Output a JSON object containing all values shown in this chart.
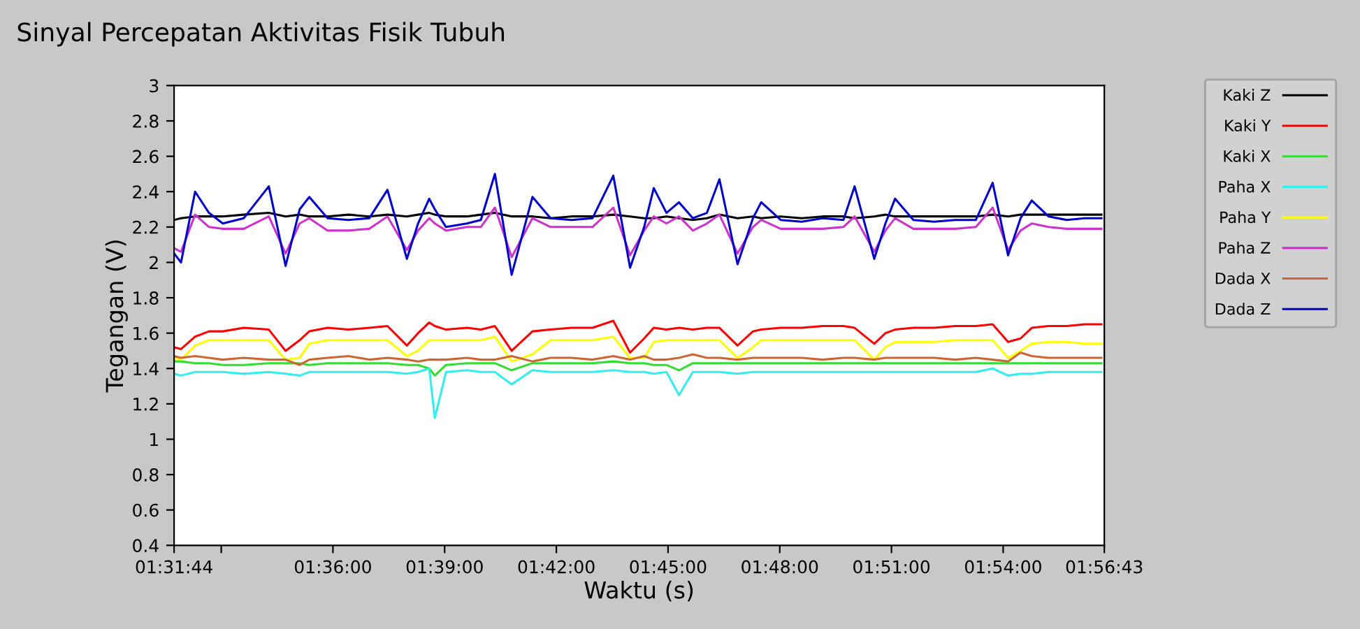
{
  "chart_data": {
    "type": "line",
    "title": "Sinyal Percepatan Aktivitas Fisik Tubuh",
    "xlabel": "Waktu (s)",
    "ylabel": "Tegangan (V)",
    "x": [
      1.5289,
      1.532,
      1.5383,
      1.5445,
      1.5507,
      1.5601,
      1.5713,
      1.5788,
      1.5851,
      1.5894,
      1.5976,
      1.6069,
      1.6163,
      1.6244,
      1.6331,
      1.6381,
      1.6431,
      1.6456,
      1.6506,
      1.66,
      1.6662,
      1.6725,
      1.68,
      1.6893,
      1.6974,
      1.7068,
      1.7162,
      1.7255,
      1.733,
      1.7393,
      1.7436,
      1.7493,
      1.7549,
      1.7611,
      1.7674,
      1.773,
      1.7811,
      1.788,
      1.7917,
      1.8004,
      1.8098,
      1.8192,
      1.8285,
      1.8335,
      1.8423,
      1.8473,
      1.8516,
      1.8598,
      1.8691,
      1.8785,
      1.8878,
      1.8953,
      1.9022,
      1.9078,
      1.9128,
      1.9203,
      1.9284,
      1.9365,
      1.944
    ],
    "series": [
      {
        "name": "Kaki Z",
        "color": "#000000",
        "values": [
          2.24,
          2.25,
          2.26,
          2.26,
          2.26,
          2.27,
          2.28,
          2.26,
          2.27,
          2.26,
          2.26,
          2.27,
          2.26,
          2.27,
          2.26,
          2.27,
          2.28,
          2.27,
          2.26,
          2.26,
          2.27,
          2.28,
          2.26,
          2.26,
          2.25,
          2.26,
          2.26,
          2.27,
          2.26,
          2.25,
          2.25,
          2.26,
          2.25,
          2.24,
          2.25,
          2.27,
          2.25,
          2.26,
          2.25,
          2.26,
          2.25,
          2.26,
          2.26,
          2.25,
          2.26,
          2.27,
          2.26,
          2.26,
          2.26,
          2.26,
          2.26,
          2.27,
          2.26,
          2.27,
          2.27,
          2.27,
          2.27,
          2.27,
          2.27
        ]
      },
      {
        "name": "Kaki Y",
        "color": "#ff0000",
        "values": [
          1.52,
          1.51,
          1.58,
          1.61,
          1.61,
          1.63,
          1.62,
          1.5,
          1.56,
          1.61,
          1.63,
          1.62,
          1.63,
          1.64,
          1.53,
          1.6,
          1.66,
          1.64,
          1.62,
          1.63,
          1.62,
          1.64,
          1.5,
          1.61,
          1.62,
          1.63,
          1.63,
          1.67,
          1.49,
          1.57,
          1.63,
          1.62,
          1.63,
          1.62,
          1.63,
          1.63,
          1.53,
          1.61,
          1.62,
          1.63,
          1.63,
          1.64,
          1.64,
          1.63,
          1.54,
          1.6,
          1.62,
          1.63,
          1.63,
          1.64,
          1.64,
          1.65,
          1.55,
          1.57,
          1.63,
          1.64,
          1.64,
          1.65,
          1.65
        ]
      },
      {
        "name": "Kaki X",
        "color": "#33dd33",
        "values": [
          1.44,
          1.44,
          1.43,
          1.43,
          1.42,
          1.42,
          1.43,
          1.43,
          1.43,
          1.42,
          1.43,
          1.43,
          1.43,
          1.43,
          1.42,
          1.42,
          1.4,
          1.36,
          1.42,
          1.43,
          1.43,
          1.43,
          1.39,
          1.43,
          1.43,
          1.43,
          1.43,
          1.44,
          1.43,
          1.43,
          1.42,
          1.42,
          1.39,
          1.43,
          1.43,
          1.43,
          1.43,
          1.43,
          1.43,
          1.43,
          1.43,
          1.43,
          1.43,
          1.43,
          1.43,
          1.43,
          1.43,
          1.43,
          1.43,
          1.43,
          1.43,
          1.43,
          1.43,
          1.43,
          1.43,
          1.43,
          1.43,
          1.43,
          1.43
        ]
      },
      {
        "name": "Paha X",
        "color": "#33eeee",
        "values": [
          1.37,
          1.36,
          1.38,
          1.38,
          1.38,
          1.37,
          1.38,
          1.37,
          1.36,
          1.38,
          1.38,
          1.38,
          1.38,
          1.38,
          1.37,
          1.38,
          1.4,
          1.12,
          1.38,
          1.39,
          1.38,
          1.38,
          1.31,
          1.39,
          1.38,
          1.38,
          1.38,
          1.39,
          1.38,
          1.38,
          1.37,
          1.38,
          1.25,
          1.38,
          1.38,
          1.38,
          1.37,
          1.38,
          1.38,
          1.38,
          1.38,
          1.38,
          1.38,
          1.38,
          1.38,
          1.38,
          1.38,
          1.38,
          1.38,
          1.38,
          1.38,
          1.4,
          1.36,
          1.37,
          1.37,
          1.38,
          1.38,
          1.38,
          1.38
        ]
      },
      {
        "name": "Paha Y",
        "color": "#ffff00",
        "values": [
          1.46,
          1.45,
          1.53,
          1.56,
          1.56,
          1.56,
          1.56,
          1.45,
          1.46,
          1.54,
          1.56,
          1.56,
          1.56,
          1.56,
          1.47,
          1.5,
          1.56,
          1.56,
          1.56,
          1.56,
          1.56,
          1.58,
          1.44,
          1.48,
          1.56,
          1.56,
          1.56,
          1.58,
          1.46,
          1.46,
          1.55,
          1.56,
          1.56,
          1.56,
          1.56,
          1.56,
          1.46,
          1.52,
          1.56,
          1.56,
          1.56,
          1.56,
          1.56,
          1.56,
          1.45,
          1.52,
          1.55,
          1.55,
          1.55,
          1.56,
          1.56,
          1.56,
          1.46,
          1.5,
          1.54,
          1.55,
          1.55,
          1.54,
          1.54
        ]
      },
      {
        "name": "Paha Z",
        "color": "#cc33cc",
        "values": [
          2.08,
          2.06,
          2.27,
          2.2,
          2.19,
          2.19,
          2.26,
          2.05,
          2.22,
          2.25,
          2.18,
          2.18,
          2.19,
          2.26,
          2.07,
          2.18,
          2.25,
          2.22,
          2.18,
          2.2,
          2.2,
          2.31,
          2.03,
          2.25,
          2.2,
          2.2,
          2.2,
          2.31,
          2.04,
          2.18,
          2.26,
          2.22,
          2.26,
          2.18,
          2.22,
          2.27,
          2.05,
          2.2,
          2.24,
          2.19,
          2.19,
          2.19,
          2.2,
          2.26,
          2.06,
          2.18,
          2.25,
          2.19,
          2.19,
          2.19,
          2.2,
          2.31,
          2.07,
          2.18,
          2.22,
          2.2,
          2.19,
          2.19,
          2.19
        ]
      },
      {
        "name": "Dada X",
        "color": "#cc6633",
        "values": [
          1.47,
          1.46,
          1.47,
          1.46,
          1.45,
          1.46,
          1.45,
          1.45,
          1.42,
          1.45,
          1.46,
          1.47,
          1.45,
          1.46,
          1.45,
          1.44,
          1.45,
          1.45,
          1.45,
          1.46,
          1.45,
          1.45,
          1.47,
          1.44,
          1.46,
          1.46,
          1.45,
          1.47,
          1.45,
          1.47,
          1.45,
          1.45,
          1.46,
          1.48,
          1.46,
          1.46,
          1.45,
          1.46,
          1.46,
          1.46,
          1.46,
          1.45,
          1.46,
          1.46,
          1.45,
          1.46,
          1.46,
          1.46,
          1.46,
          1.45,
          1.46,
          1.45,
          1.44,
          1.49,
          1.47,
          1.46,
          1.46,
          1.46,
          1.46
        ]
      },
      {
        "name": "Dada Z",
        "color": "#0000cc",
        "values": [
          2.05,
          2.0,
          2.4,
          2.28,
          2.22,
          2.25,
          2.43,
          1.98,
          2.3,
          2.37,
          2.25,
          2.24,
          2.25,
          2.41,
          2.02,
          2.22,
          2.36,
          2.3,
          2.2,
          2.22,
          2.24,
          2.5,
          1.93,
          2.37,
          2.25,
          2.24,
          2.25,
          2.49,
          1.97,
          2.2,
          2.42,
          2.28,
          2.34,
          2.25,
          2.28,
          2.47,
          1.99,
          2.25,
          2.34,
          2.24,
          2.23,
          2.25,
          2.24,
          2.43,
          2.02,
          2.22,
          2.36,
          2.24,
          2.23,
          2.24,
          2.24,
          2.45,
          2.04,
          2.25,
          2.35,
          2.26,
          2.24,
          2.25,
          2.25
        ]
      }
    ],
    "xlim": [
      1.528889,
      1.945278
    ],
    "xticks": [
      {
        "value": 1.528889,
        "label": "01:31:44"
      },
      {
        "value": 1.55,
        "label": null
      },
      {
        "value": 1.6,
        "label": "01:36:00"
      },
      {
        "value": 1.65,
        "label": "01:39:00"
      },
      {
        "value": 1.7,
        "label": "01:42:00"
      },
      {
        "value": 1.75,
        "label": "01:45:00"
      },
      {
        "value": 1.8,
        "label": "01:48:00"
      },
      {
        "value": 1.85,
        "label": "01:51:00"
      },
      {
        "value": 1.9,
        "label": "01:54:00"
      },
      {
        "value": 1.945278,
        "label": "01:56:43"
      }
    ],
    "ylim": [
      0.4,
      3
    ],
    "yticks": [
      0.4,
      0.6,
      0.8,
      1,
      1.2,
      1.4,
      1.6,
      1.8,
      2,
      2.2,
      2.4,
      2.6,
      2.8,
      3
    ],
    "grid": false,
    "legend": "right",
    "marker": "none",
    "line_style": "solid"
  }
}
